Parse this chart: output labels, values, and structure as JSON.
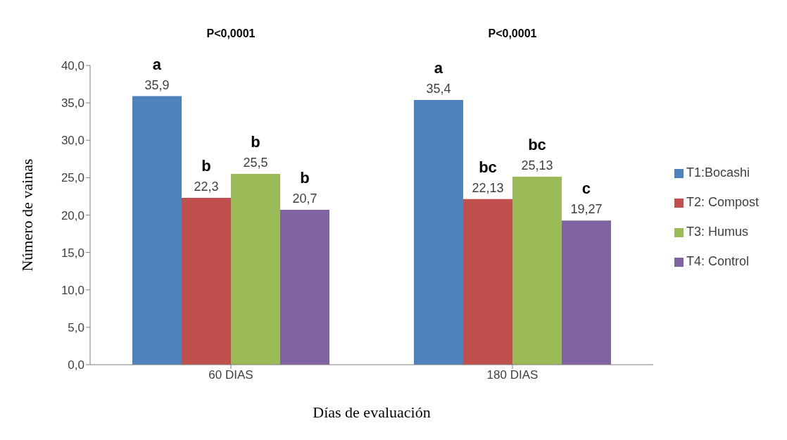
{
  "chart_data": {
    "type": "bar",
    "xlabel": "Días de evaluación",
    "ylabel": "Número de vainas",
    "categories": [
      "60 DIAS",
      "180 DIAS"
    ],
    "series": [
      {
        "name": "T1:Bocashi",
        "color": "#4f81bd",
        "values": [
          35.9,
          35.4
        ],
        "value_labels": [
          "35,9",
          "35,4"
        ]
      },
      {
        "name": "T2: Compost",
        "color": "#c0504d",
        "values": [
          22.3,
          22.13
        ],
        "value_labels": [
          "22,3",
          "22,13"
        ]
      },
      {
        "name": "T3: Humus",
        "color": "#9bbb59",
        "values": [
          25.5,
          25.13
        ],
        "value_labels": [
          "25,5",
          "25,13"
        ]
      },
      {
        "name": "T4: Control",
        "color": "#8064a2",
        "values": [
          20.7,
          19.27
        ],
        "value_labels": [
          "20,7",
          "19,27"
        ]
      }
    ],
    "ylim": [
      0,
      40
    ],
    "yticks": [
      {
        "value": 0,
        "label": "0,0"
      },
      {
        "value": 5,
        "label": "5,0"
      },
      {
        "value": 10,
        "label": "10,0"
      },
      {
        "value": 15,
        "label": "15,0"
      },
      {
        "value": 20,
        "label": "20,0"
      },
      {
        "value": 25,
        "label": "25,0"
      },
      {
        "value": 30,
        "label": "30,0"
      },
      {
        "value": 35,
        "label": "35,0"
      },
      {
        "value": 40,
        "label": "40,0"
      }
    ],
    "grid": false,
    "legend": "right",
    "annotations": [
      "P<0,0001",
      "P<0,0001",
      "a",
      "b",
      "b",
      "b",
      "a",
      "bc",
      "bc",
      "c"
    ]
  }
}
